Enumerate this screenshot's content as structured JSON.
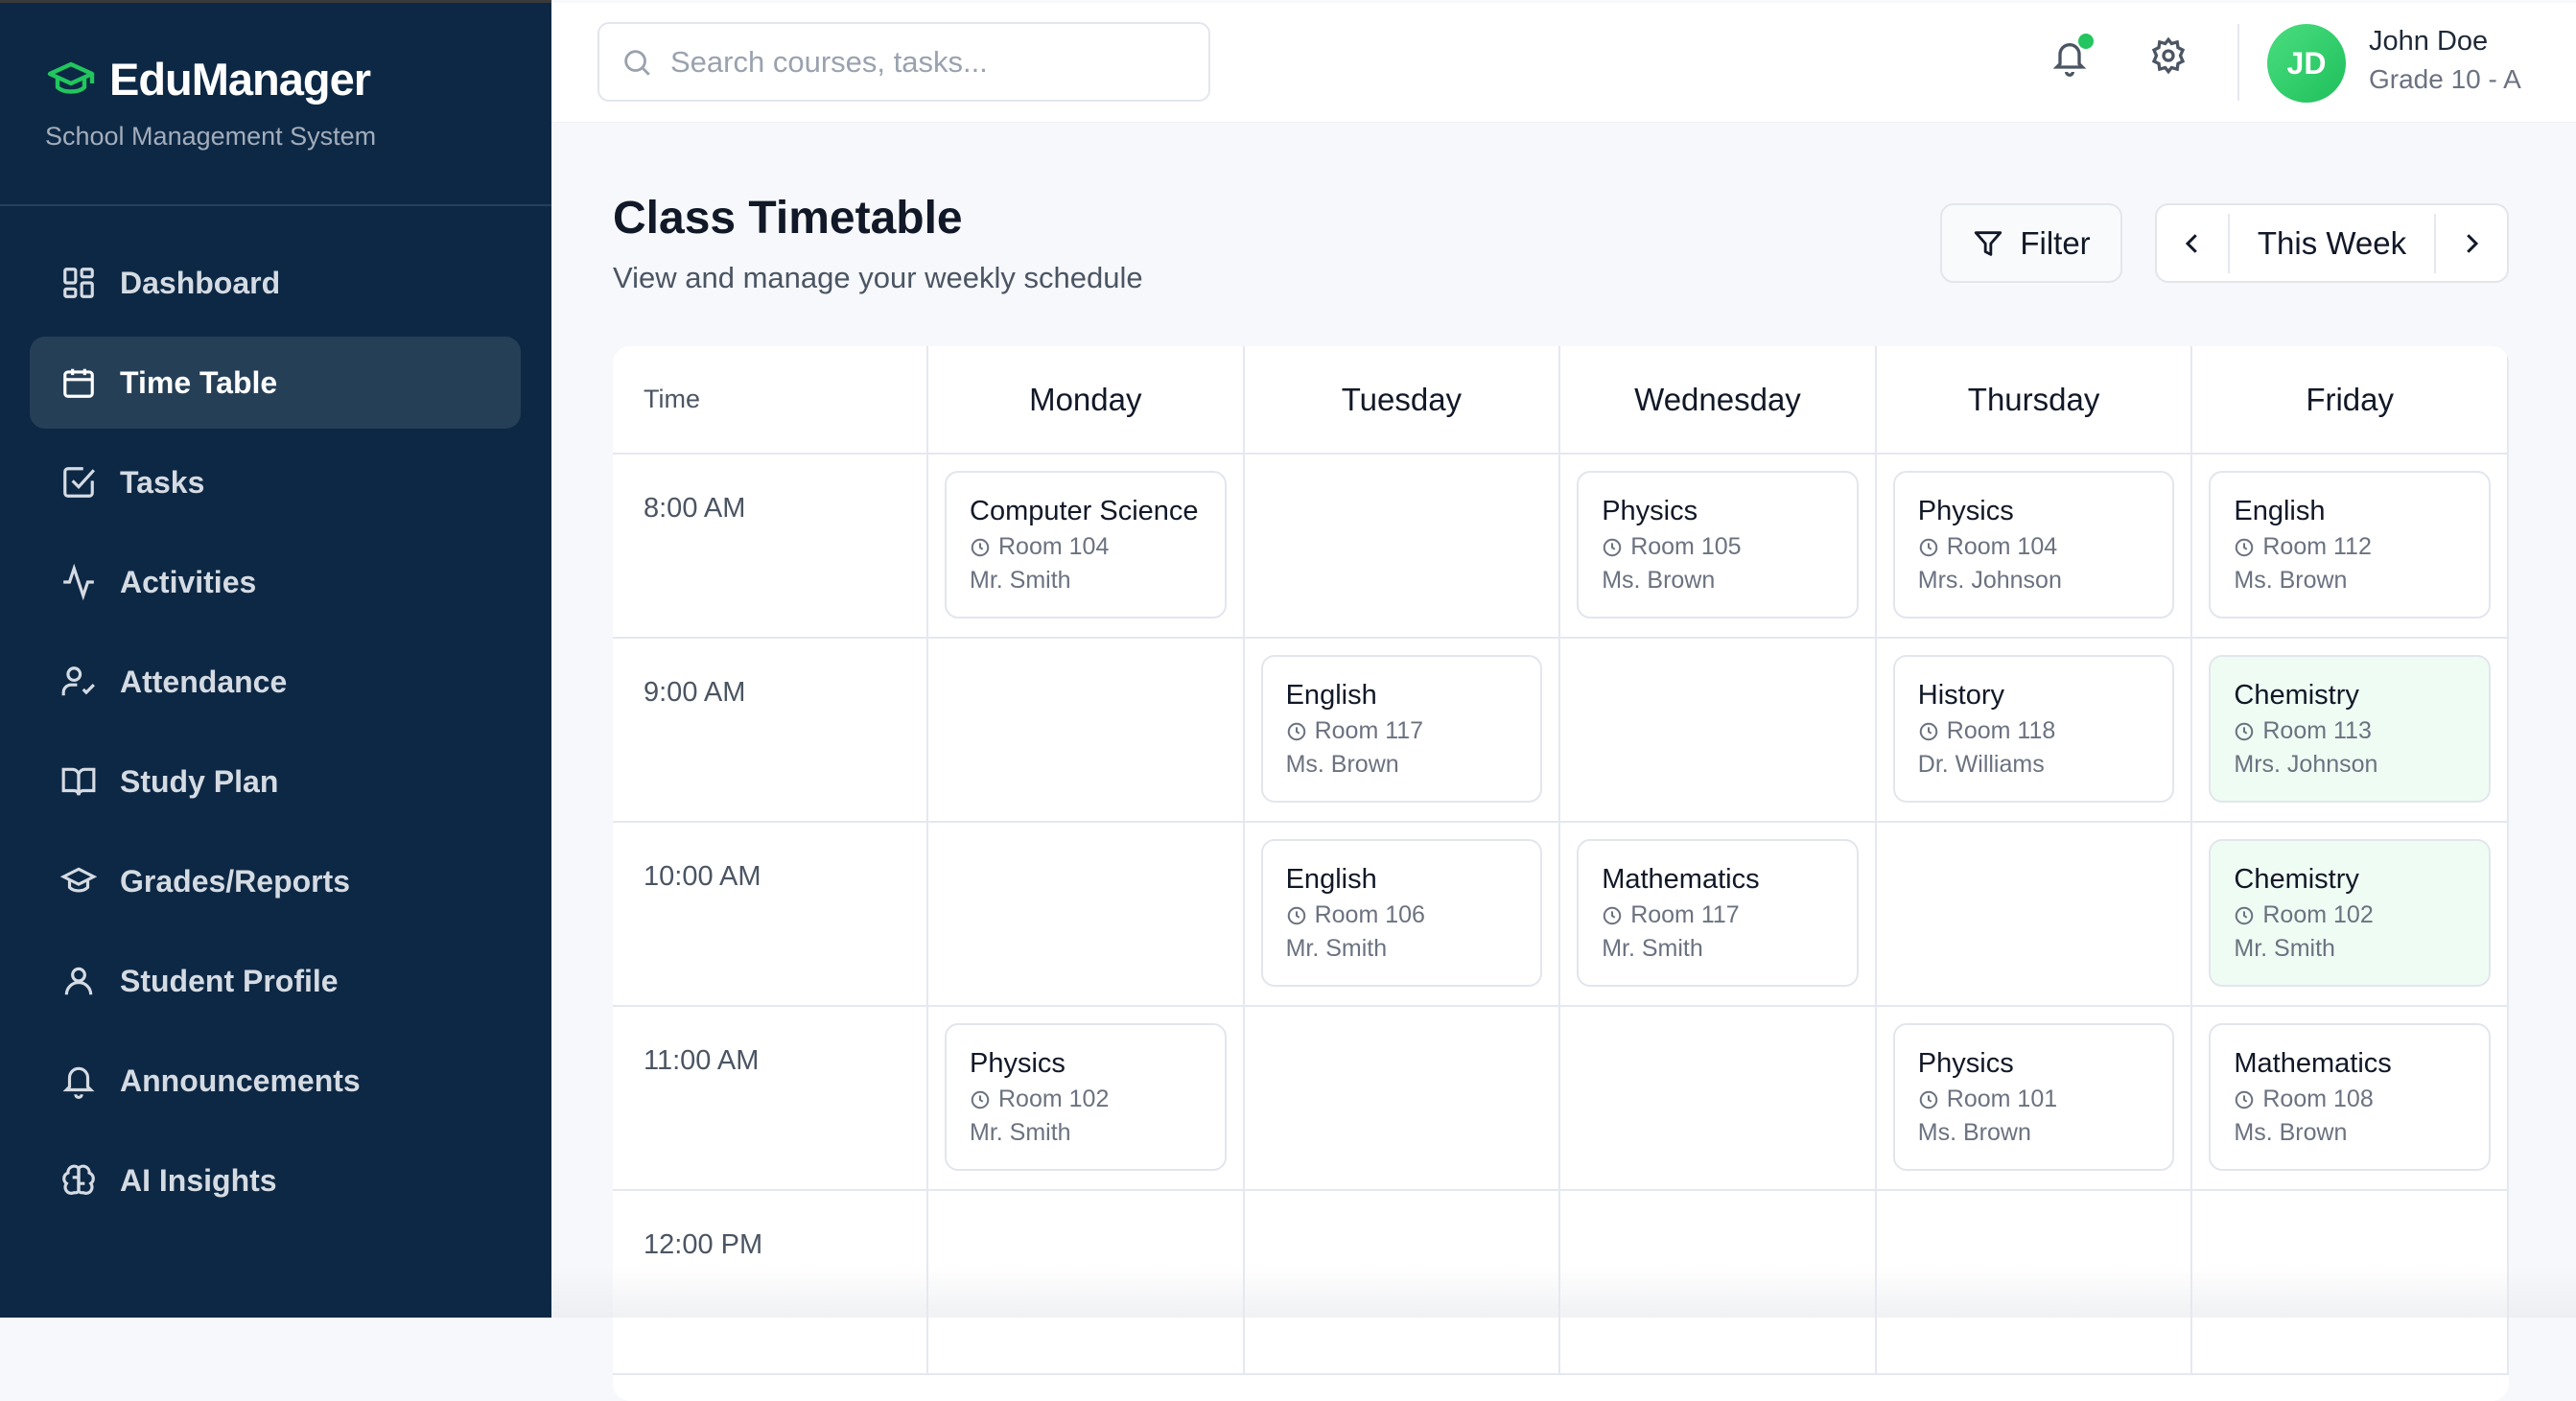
{
  "app": {
    "name": "EduManager",
    "subtitle": "School Management System",
    "accent": "#22c55e"
  },
  "sidebar": {
    "items": [
      {
        "label": "Dashboard",
        "icon": "dashboard-icon"
      },
      {
        "label": "Time Table",
        "icon": "calendar-icon",
        "active": true
      },
      {
        "label": "Tasks",
        "icon": "checkbox-icon"
      },
      {
        "label": "Activities",
        "icon": "activity-icon"
      },
      {
        "label": "Attendance",
        "icon": "user-check-icon"
      },
      {
        "label": "Study Plan",
        "icon": "book-icon"
      },
      {
        "label": "Grades/Reports",
        "icon": "graduation-cap-icon"
      },
      {
        "label": "Student Profile",
        "icon": "user-icon"
      },
      {
        "label": "Announcements",
        "icon": "bell-icon"
      },
      {
        "label": "AI Insights",
        "icon": "brain-icon"
      }
    ]
  },
  "header": {
    "search_placeholder": "Search courses, tasks...",
    "user": {
      "initials": "JD",
      "name": "John Doe",
      "grade": "Grade 10 - A"
    },
    "has_notification": true
  },
  "page": {
    "title": "Class Timetable",
    "subtitle": "View and manage your weekly schedule",
    "filter_label": "Filter",
    "week_label": "This Week"
  },
  "timetable": {
    "time_header": "Time",
    "days": [
      "Monday",
      "Tuesday",
      "Wednesday",
      "Thursday",
      "Friday"
    ],
    "rows": [
      {
        "time": "8:00 AM",
        "slots": [
          {
            "subject": "Computer Science",
            "room": "Room 104",
            "teacher": "Mr. Smith"
          },
          null,
          {
            "subject": "Physics",
            "room": "Room 105",
            "teacher": "Ms. Brown"
          },
          {
            "subject": "Physics",
            "room": "Room 104",
            "teacher": "Mrs. Johnson"
          },
          {
            "subject": "English",
            "room": "Room 112",
            "teacher": "Ms. Brown"
          }
        ]
      },
      {
        "time": "9:00 AM",
        "slots": [
          null,
          {
            "subject": "English",
            "room": "Room 117",
            "teacher": "Ms. Brown"
          },
          null,
          {
            "subject": "History",
            "room": "Room 118",
            "teacher": "Dr. Williams"
          },
          {
            "subject": "Chemistry",
            "room": "Room 113",
            "teacher": "Mrs. Johnson",
            "highlight": true
          }
        ]
      },
      {
        "time": "10:00 AM",
        "slots": [
          null,
          {
            "subject": "English",
            "room": "Room 106",
            "teacher": "Mr. Smith"
          },
          {
            "subject": "Mathematics",
            "room": "Room 117",
            "teacher": "Mr. Smith"
          },
          null,
          {
            "subject": "Chemistry",
            "room": "Room 102",
            "teacher": "Mr. Smith",
            "highlight": true
          }
        ]
      },
      {
        "time": "11:00 AM",
        "slots": [
          {
            "subject": "Physics",
            "room": "Room 102",
            "teacher": "Mr. Smith"
          },
          null,
          null,
          {
            "subject": "Physics",
            "room": "Room 101",
            "teacher": "Ms. Brown"
          },
          {
            "subject": "Mathematics",
            "room": "Room 108",
            "teacher": "Ms. Brown"
          }
        ]
      },
      {
        "time": "12:00 PM",
        "slots": [
          null,
          null,
          null,
          null,
          null
        ]
      }
    ]
  }
}
